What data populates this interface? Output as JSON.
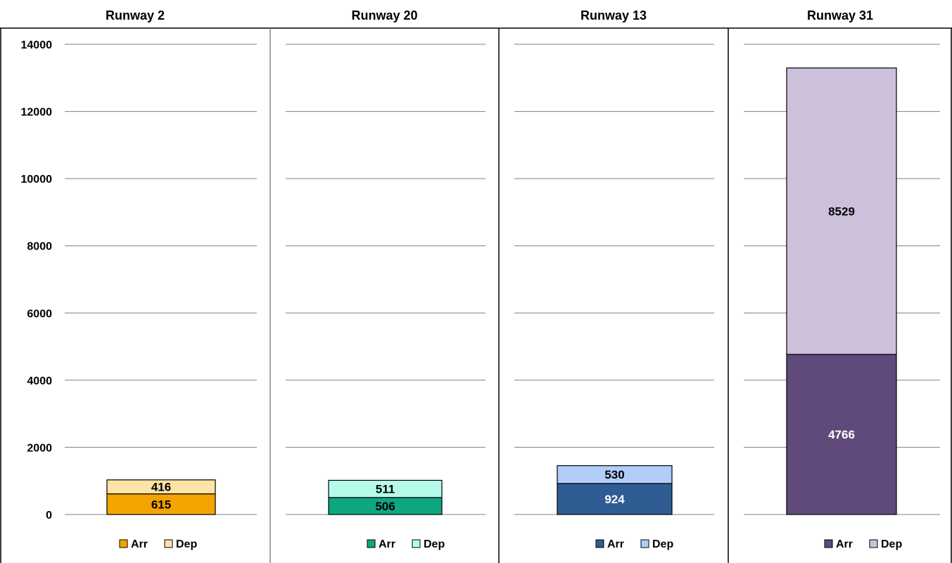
{
  "chart_data": {
    "type": "bar",
    "stacked": true,
    "ylim": [
      0,
      14000
    ],
    "y_ticks": [
      0,
      2000,
      4000,
      6000,
      8000,
      10000,
      12000,
      14000
    ],
    "grid": true,
    "legend_placement": "bottom",
    "panels": [
      {
        "title": "Runway 2",
        "series": [
          {
            "name": "Arr",
            "value": 615,
            "color": "#F5A300"
          },
          {
            "name": "Dep",
            "value": 416,
            "color": "#FCE3A6"
          }
        ]
      },
      {
        "title": "Runway 20",
        "series": [
          {
            "name": "Arr",
            "value": 506,
            "color": "#0FA683"
          },
          {
            "name": "Dep",
            "value": 511,
            "color": "#B6FBEA"
          }
        ]
      },
      {
        "title": "Runway 13",
        "series": [
          {
            "name": "Arr",
            "value": 924,
            "color": "#2E5C93"
          },
          {
            "name": "Dep",
            "value": 530,
            "color": "#B1CDF9"
          }
        ]
      },
      {
        "title": "Runway 31",
        "series": [
          {
            "name": "Arr",
            "value": 4766,
            "color": "#604A7B"
          },
          {
            "name": "Dep",
            "value": 8529,
            "color": "#CCC0DA"
          }
        ]
      }
    ]
  }
}
